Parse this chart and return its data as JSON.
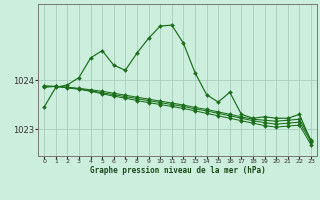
{
  "xlabel": "Graphe pression niveau de la mer (hPa)",
  "background_color": "#cceedd",
  "grid_color": "#aaccbb",
  "line_color": "#1a6e1a",
  "marker_color": "#1a6e1a",
  "ylim": [
    1022.45,
    1025.55
  ],
  "xlim": [
    -0.5,
    23.5
  ],
  "yticks": [
    1023,
    1024
  ],
  "xticks": [
    0,
    1,
    2,
    3,
    4,
    5,
    6,
    7,
    8,
    9,
    10,
    11,
    12,
    13,
    14,
    15,
    16,
    17,
    18,
    19,
    20,
    21,
    22,
    23
  ],
  "series": [
    [
      1023.45,
      1023.85,
      1023.9,
      1024.05,
      1024.45,
      1024.6,
      1024.3,
      1024.2,
      1024.55,
      1024.85,
      1025.1,
      1025.12,
      1024.75,
      1024.15,
      1023.7,
      1023.55,
      1023.75,
      1023.3,
      1023.22,
      1023.25,
      1023.22,
      1023.22,
      1023.3,
      1022.75
    ],
    [
      1023.85,
      1023.87,
      1023.85,
      1023.83,
      1023.8,
      1023.77,
      1023.73,
      1023.69,
      1023.65,
      1023.61,
      1023.57,
      1023.53,
      1023.49,
      1023.44,
      1023.4,
      1023.35,
      1023.3,
      1023.25,
      1023.2,
      1023.18,
      1023.16,
      1023.18,
      1023.2,
      1022.78
    ],
    [
      1023.87,
      1023.87,
      1023.85,
      1023.82,
      1023.78,
      1023.74,
      1023.7,
      1023.66,
      1023.62,
      1023.58,
      1023.54,
      1023.5,
      1023.46,
      1023.41,
      1023.37,
      1023.32,
      1023.27,
      1023.22,
      1023.17,
      1023.13,
      1023.1,
      1023.12,
      1023.14,
      1022.74
    ],
    [
      1023.88,
      1023.87,
      1023.84,
      1023.81,
      1023.77,
      1023.72,
      1023.67,
      1023.63,
      1023.58,
      1023.54,
      1023.5,
      1023.46,
      1023.42,
      1023.37,
      1023.32,
      1023.27,
      1023.22,
      1023.17,
      1023.12,
      1023.07,
      1023.04,
      1023.06,
      1023.08,
      1022.68
    ]
  ]
}
